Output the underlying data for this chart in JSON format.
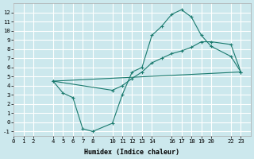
{
  "xlabel": "Humidex (Indice chaleur)",
  "bg_color": "#cce8ed",
  "grid_color": "#ffffff",
  "line_color": "#1a7a6e",
  "line1_x": [
    4,
    5,
    6,
    7,
    8,
    10,
    11,
    12,
    13,
    14,
    15,
    16,
    17,
    18,
    19,
    20,
    22,
    23
  ],
  "line1_y": [
    4.5,
    3.2,
    2.7,
    -0.7,
    -1.0,
    -0.1,
    3.0,
    5.5,
    6.0,
    9.5,
    10.5,
    11.8,
    12.3,
    11.5,
    9.5,
    8.3,
    7.2,
    5.5
  ],
  "line2_x": [
    4,
    10,
    11,
    12,
    13,
    14,
    15,
    16,
    17,
    18,
    19,
    20,
    22,
    23
  ],
  "line2_y": [
    4.5,
    3.5,
    4.0,
    4.8,
    5.5,
    6.5,
    7.0,
    7.5,
    7.8,
    8.2,
    8.8,
    8.8,
    8.5,
    5.5
  ],
  "line3_x": [
    4,
    23
  ],
  "line3_y": [
    4.5,
    5.5
  ],
  "xlim": [
    0,
    24
  ],
  "ylim": [
    -1.5,
    13
  ],
  "xticks": [
    0,
    1,
    2,
    4,
    5,
    6,
    7,
    8,
    10,
    11,
    12,
    13,
    14,
    16,
    17,
    18,
    19,
    20,
    22,
    23
  ],
  "yticks": [
    -1,
    0,
    1,
    2,
    3,
    4,
    5,
    6,
    7,
    8,
    9,
    10,
    11,
    12
  ],
  "xlabel_fontsize": 6.0,
  "tick_fontsize": 5.2
}
